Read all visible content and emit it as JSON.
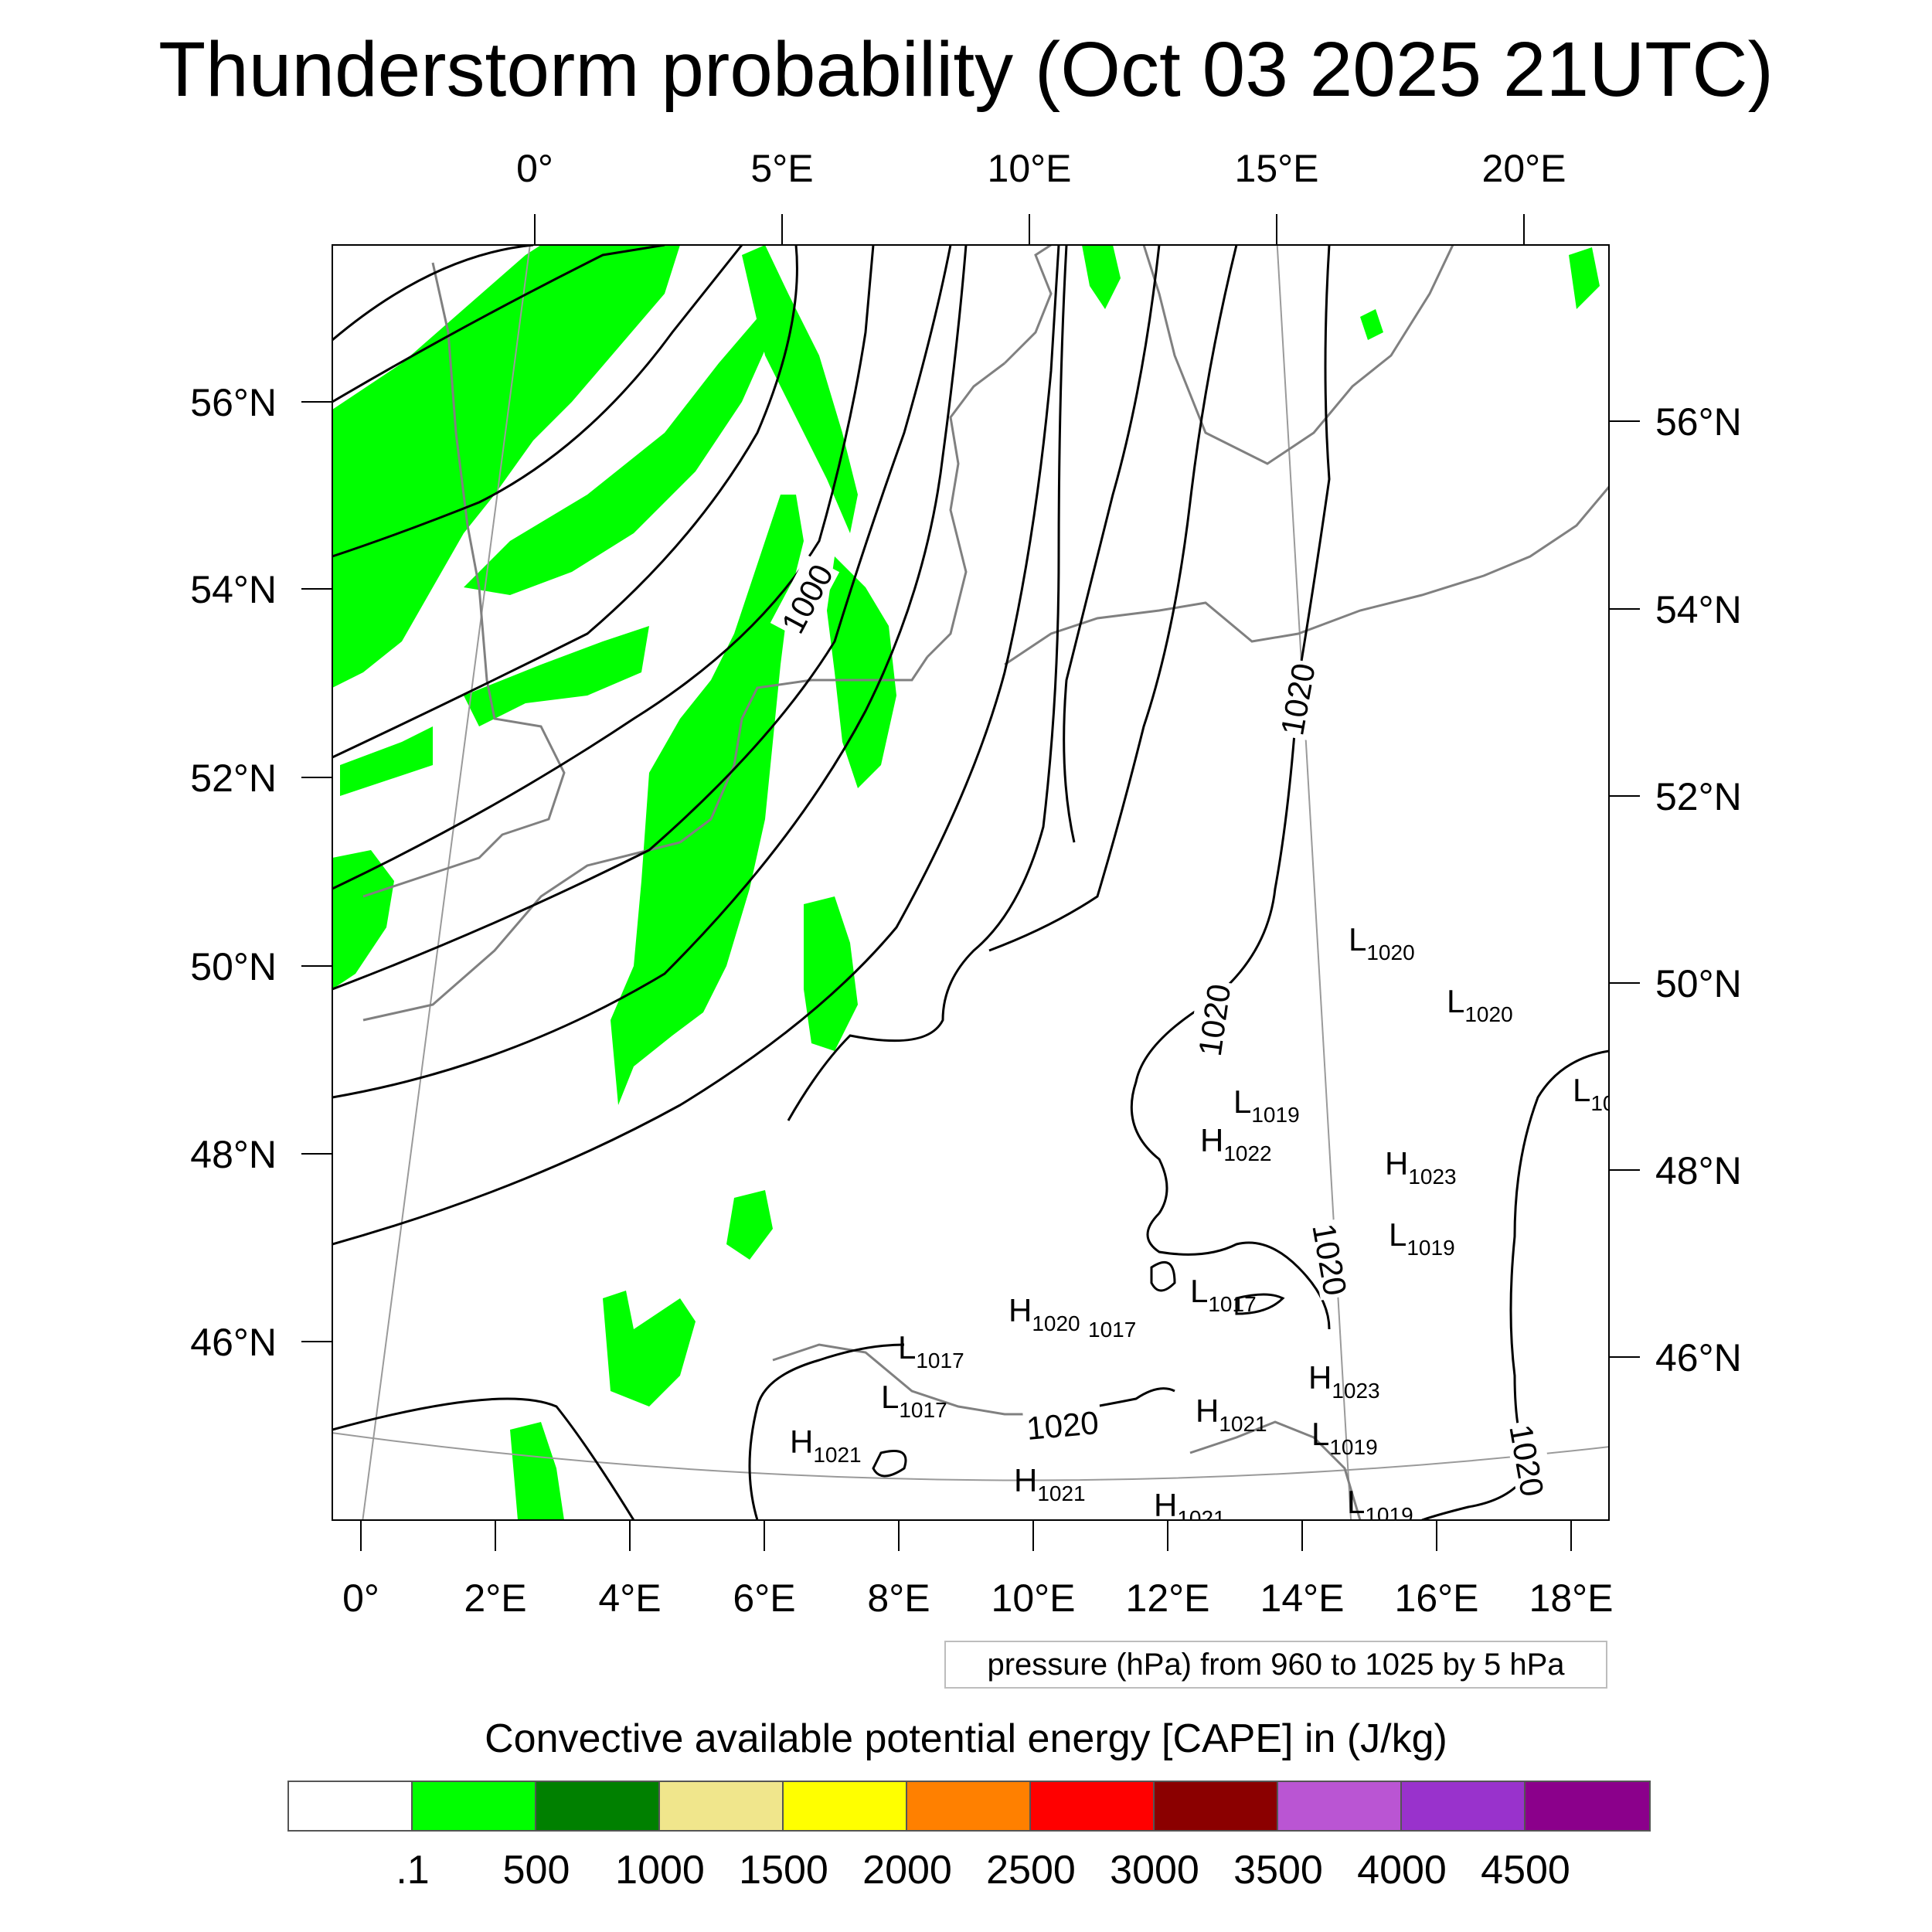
{
  "title": "Thunderstorm probability (Oct 03 2025 21UTC)",
  "map": {
    "top_lon_labels": [
      "0°",
      "5°E",
      "10°E",
      "15°E",
      "20°E"
    ],
    "bottom_lon_labels": [
      "0°",
      "2°E",
      "4°E",
      "6°E",
      "8°E",
      "10°E",
      "12°E",
      "14°E",
      "16°E",
      "18°E"
    ],
    "left_lat_labels": [
      "56°N",
      "54°N",
      "52°N",
      "50°N",
      "48°N",
      "46°N"
    ],
    "right_lat_labels": [
      "56°N",
      "54°N",
      "52°N",
      "50°N",
      "48°N",
      "46°N"
    ],
    "contour_labels": [
      "1000",
      "1020",
      "1020",
      "1020",
      "1020",
      "1020"
    ],
    "pressure_centers": [
      {
        "type": "L",
        "value": "1020"
      },
      {
        "type": "L",
        "value": "1020"
      },
      {
        "type": "L",
        "value": "10"
      },
      {
        "type": "L",
        "value": "1019"
      },
      {
        "type": "H",
        "value": "1022"
      },
      {
        "type": "H",
        "value": "1023"
      },
      {
        "type": "L",
        "value": "1019"
      },
      {
        "type": "L",
        "value": "1017"
      },
      {
        "type": "H",
        "value": "1020"
      },
      {
        "type": "",
        "value": "1017"
      },
      {
        "type": "L",
        "value": "1017"
      },
      {
        "type": "L",
        "value": "1017"
      },
      {
        "type": "H",
        "value": "1021"
      },
      {
        "type": "H",
        "value": "1023"
      },
      {
        "type": "H",
        "value": "1021"
      },
      {
        "type": "L",
        "value": "1019"
      },
      {
        "type": "H",
        "value": "1021"
      },
      {
        "type": "H",
        "value": "1021"
      },
      {
        "type": "L",
        "value": "1019"
      }
    ],
    "colors": {
      "cape_low": "#00ff00",
      "contour": "#000000",
      "coastline": "#808080",
      "graticule": "#9a9a9a"
    }
  },
  "pressure_note": "pressure (hPa) from 960 to 1025 by 5 hPa",
  "colorbar": {
    "title": "Convective available potential energy [CAPE] in (J/kg)",
    "colors": [
      "#ffffff",
      "#00ff00",
      "#008000",
      "#f0e68c",
      "#ffff00",
      "#ff8000",
      "#ff0000",
      "#8b0000",
      "#ba55d3",
      "#9932cc",
      "#8b008b"
    ],
    "tick_labels": [
      ".1",
      "500",
      "1000",
      "1500",
      "2000",
      "2500",
      "3000",
      "3500",
      "4000",
      "4500"
    ]
  }
}
